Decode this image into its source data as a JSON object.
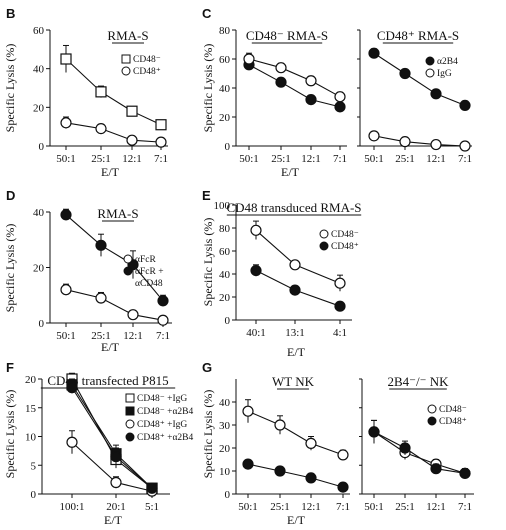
{
  "figure_letters": [
    "B",
    "C",
    "D",
    "E",
    "F",
    "G"
  ],
  "chart_data": [
    {
      "id": "B",
      "type": "line",
      "title": "RMA-S",
      "title_underline": true,
      "xlabel": "",
      "ylabel": "Specific Lysis (%)",
      "categories": [
        "50:1",
        "25:1",
        "12:1",
        "7:1"
      ],
      "ylim": [
        0,
        60
      ],
      "yticks": [
        0,
        20,
        40,
        60
      ],
      "legend_position": "top-right",
      "series": [
        {
          "name": "CD48⁻",
          "marker": "open-square",
          "values": [
            45,
            28,
            18,
            11
          ],
          "errors": [
            7,
            3,
            2,
            2
          ]
        },
        {
          "name": "CD48⁺",
          "marker": "open-circle",
          "values": [
            12,
            9,
            3,
            2
          ],
          "errors": [
            3,
            2,
            1,
            1
          ]
        }
      ]
    },
    {
      "id": "C1",
      "type": "line",
      "title": "CD48⁻ RMA-S",
      "title_underline": true,
      "xlabel": "",
      "ylabel": "Specific Lysis (%)",
      "categories": [
        "50:1",
        "25:1",
        "12:1",
        "7:1"
      ],
      "ylim": [
        0,
        80
      ],
      "yticks": [
        0,
        20,
        40,
        60,
        80
      ],
      "series": [
        {
          "name": "α2B4",
          "marker": "filled-circle",
          "values": [
            56,
            44,
            32,
            27
          ],
          "errors": [
            3,
            2,
            2,
            2
          ]
        },
        {
          "name": "IgG",
          "marker": "open-circle",
          "values": [
            60,
            54,
            45,
            34
          ],
          "errors": [
            4,
            3,
            3,
            3
          ]
        }
      ]
    },
    {
      "id": "C2",
      "type": "line",
      "title": "CD48⁺ RMA-S",
      "title_underline": true,
      "xlabel": "",
      "ylabel": "",
      "categories": [
        "50:1",
        "25:1",
        "12:1",
        "7:1"
      ],
      "ylim": [
        0,
        80
      ],
      "legend_position": "top-right",
      "series": [
        {
          "name": "α2B4",
          "marker": "filled-circle",
          "values": [
            64,
            50,
            36,
            28
          ],
          "errors": [
            3,
            2,
            2,
            2
          ]
        },
        {
          "name": "IgG",
          "marker": "open-circle",
          "values": [
            7,
            3,
            1,
            0
          ],
          "errors": [
            1,
            1,
            1,
            1
          ]
        }
      ]
    },
    {
      "id": "D",
      "type": "line",
      "title": "RMA-S",
      "title_underline": true,
      "xlabel": "E/T",
      "ylabel": "Specific Lysis (%)",
      "categories": [
        "50:1",
        "25:1",
        "12:1",
        "7:1"
      ],
      "ylim": [
        0,
        40
      ],
      "yticks": [
        0,
        20,
        40
      ],
      "legend_position": "right",
      "series": [
        {
          "name": "αFcR",
          "marker": "open-circle",
          "values": [
            12,
            9,
            3,
            1
          ],
          "errors": [
            2,
            2,
            1,
            1
          ]
        },
        {
          "name": "αFcR + αCD48",
          "marker": "filled-circle",
          "values": [
            39,
            28,
            21,
            8
          ],
          "errors": [
            2,
            4,
            5,
            2
          ]
        }
      ]
    },
    {
      "id": "E",
      "type": "line",
      "title": "CD48 transduced RMA-S",
      "title_underline": true,
      "xlabel": "E/T",
      "ylabel": "Specific Lysis (%)",
      "categories": [
        "40:1",
        "13:1",
        "4:1"
      ],
      "ylim": [
        0,
        100
      ],
      "yticks": [
        0,
        20,
        40,
        60,
        80,
        100
      ],
      "legend_position": "top-right",
      "series": [
        {
          "name": "CD48⁻",
          "marker": "open-circle",
          "values": [
            78,
            48,
            32
          ],
          "errors": [
            8,
            3,
            7
          ]
        },
        {
          "name": "CD48⁺",
          "marker": "filled-circle",
          "values": [
            43,
            26,
            12
          ],
          "errors": [
            5,
            2,
            2
          ]
        }
      ]
    },
    {
      "id": "F",
      "type": "line",
      "title": "CD48 transfected P815",
      "title_underline": true,
      "xlabel": "E/T",
      "ylabel": "Specific Lysis (%)",
      "categories": [
        "100:1",
        "20:1",
        "5:1"
      ],
      "ylim": [
        0,
        20
      ],
      "yticks": [
        0,
        5,
        10,
        15,
        20
      ],
      "legend_position": "right",
      "series": [
        {
          "name": "CD48⁻ +IgG",
          "marker": "open-square",
          "values": [
            20,
            6,
            1
          ],
          "errors": [
            1,
            1,
            0.5
          ]
        },
        {
          "name": "CD48⁻ +α2B4",
          "marker": "filled-square",
          "values": [
            19,
            7,
            1
          ],
          "errors": [
            1,
            1,
            0.5
          ]
        },
        {
          "name": "CD48⁺ +IgG",
          "marker": "open-circle",
          "values": [
            9,
            2,
            0.5
          ],
          "errors": [
            2,
            1,
            0.5
          ]
        },
        {
          "name": "CD48⁺ +α2B4",
          "marker": "filled-circle",
          "values": [
            18.5,
            6.5,
            1
          ],
          "errors": [
            1,
            2,
            0.5
          ]
        }
      ]
    },
    {
      "id": "G1",
      "type": "line",
      "title": "WT NK",
      "title_underline": true,
      "xlabel": "E/T",
      "ylabel": "Specific Lysis (%)",
      "categories": [
        "50:1",
        "25:1",
        "12:1",
        "7:1"
      ],
      "ylim": [
        0,
        50
      ],
      "yticks": [
        0,
        10,
        20,
        30,
        40
      ],
      "series": [
        {
          "name": "CD48⁻",
          "marker": "open-circle",
          "values": [
            36,
            30,
            22,
            17
          ],
          "errors": [
            5,
            4,
            3,
            2
          ]
        },
        {
          "name": "CD48⁺",
          "marker": "filled-circle",
          "values": [
            13,
            10,
            7,
            3
          ],
          "errors": [
            1,
            1,
            1,
            1
          ]
        }
      ]
    },
    {
      "id": "G2",
      "type": "line",
      "title": "2B4⁻/⁻ NK",
      "title_underline": true,
      "xlabel": "",
      "ylabel": "",
      "categories": [
        "50:1",
        "25:1",
        "12:1",
        "7:1"
      ],
      "ylim": [
        0,
        50
      ],
      "legend_position": "top-right",
      "series": [
        {
          "name": "CD48⁻",
          "marker": "open-circle",
          "values": [
            27,
            18,
            13,
            9
          ],
          "errors": [
            5,
            3,
            2,
            2
          ]
        },
        {
          "name": "CD48⁺",
          "marker": "filled-circle",
          "values": [
            27,
            20,
            11,
            9
          ],
          "errors": [
            5,
            3,
            2,
            2
          ]
        }
      ]
    }
  ]
}
